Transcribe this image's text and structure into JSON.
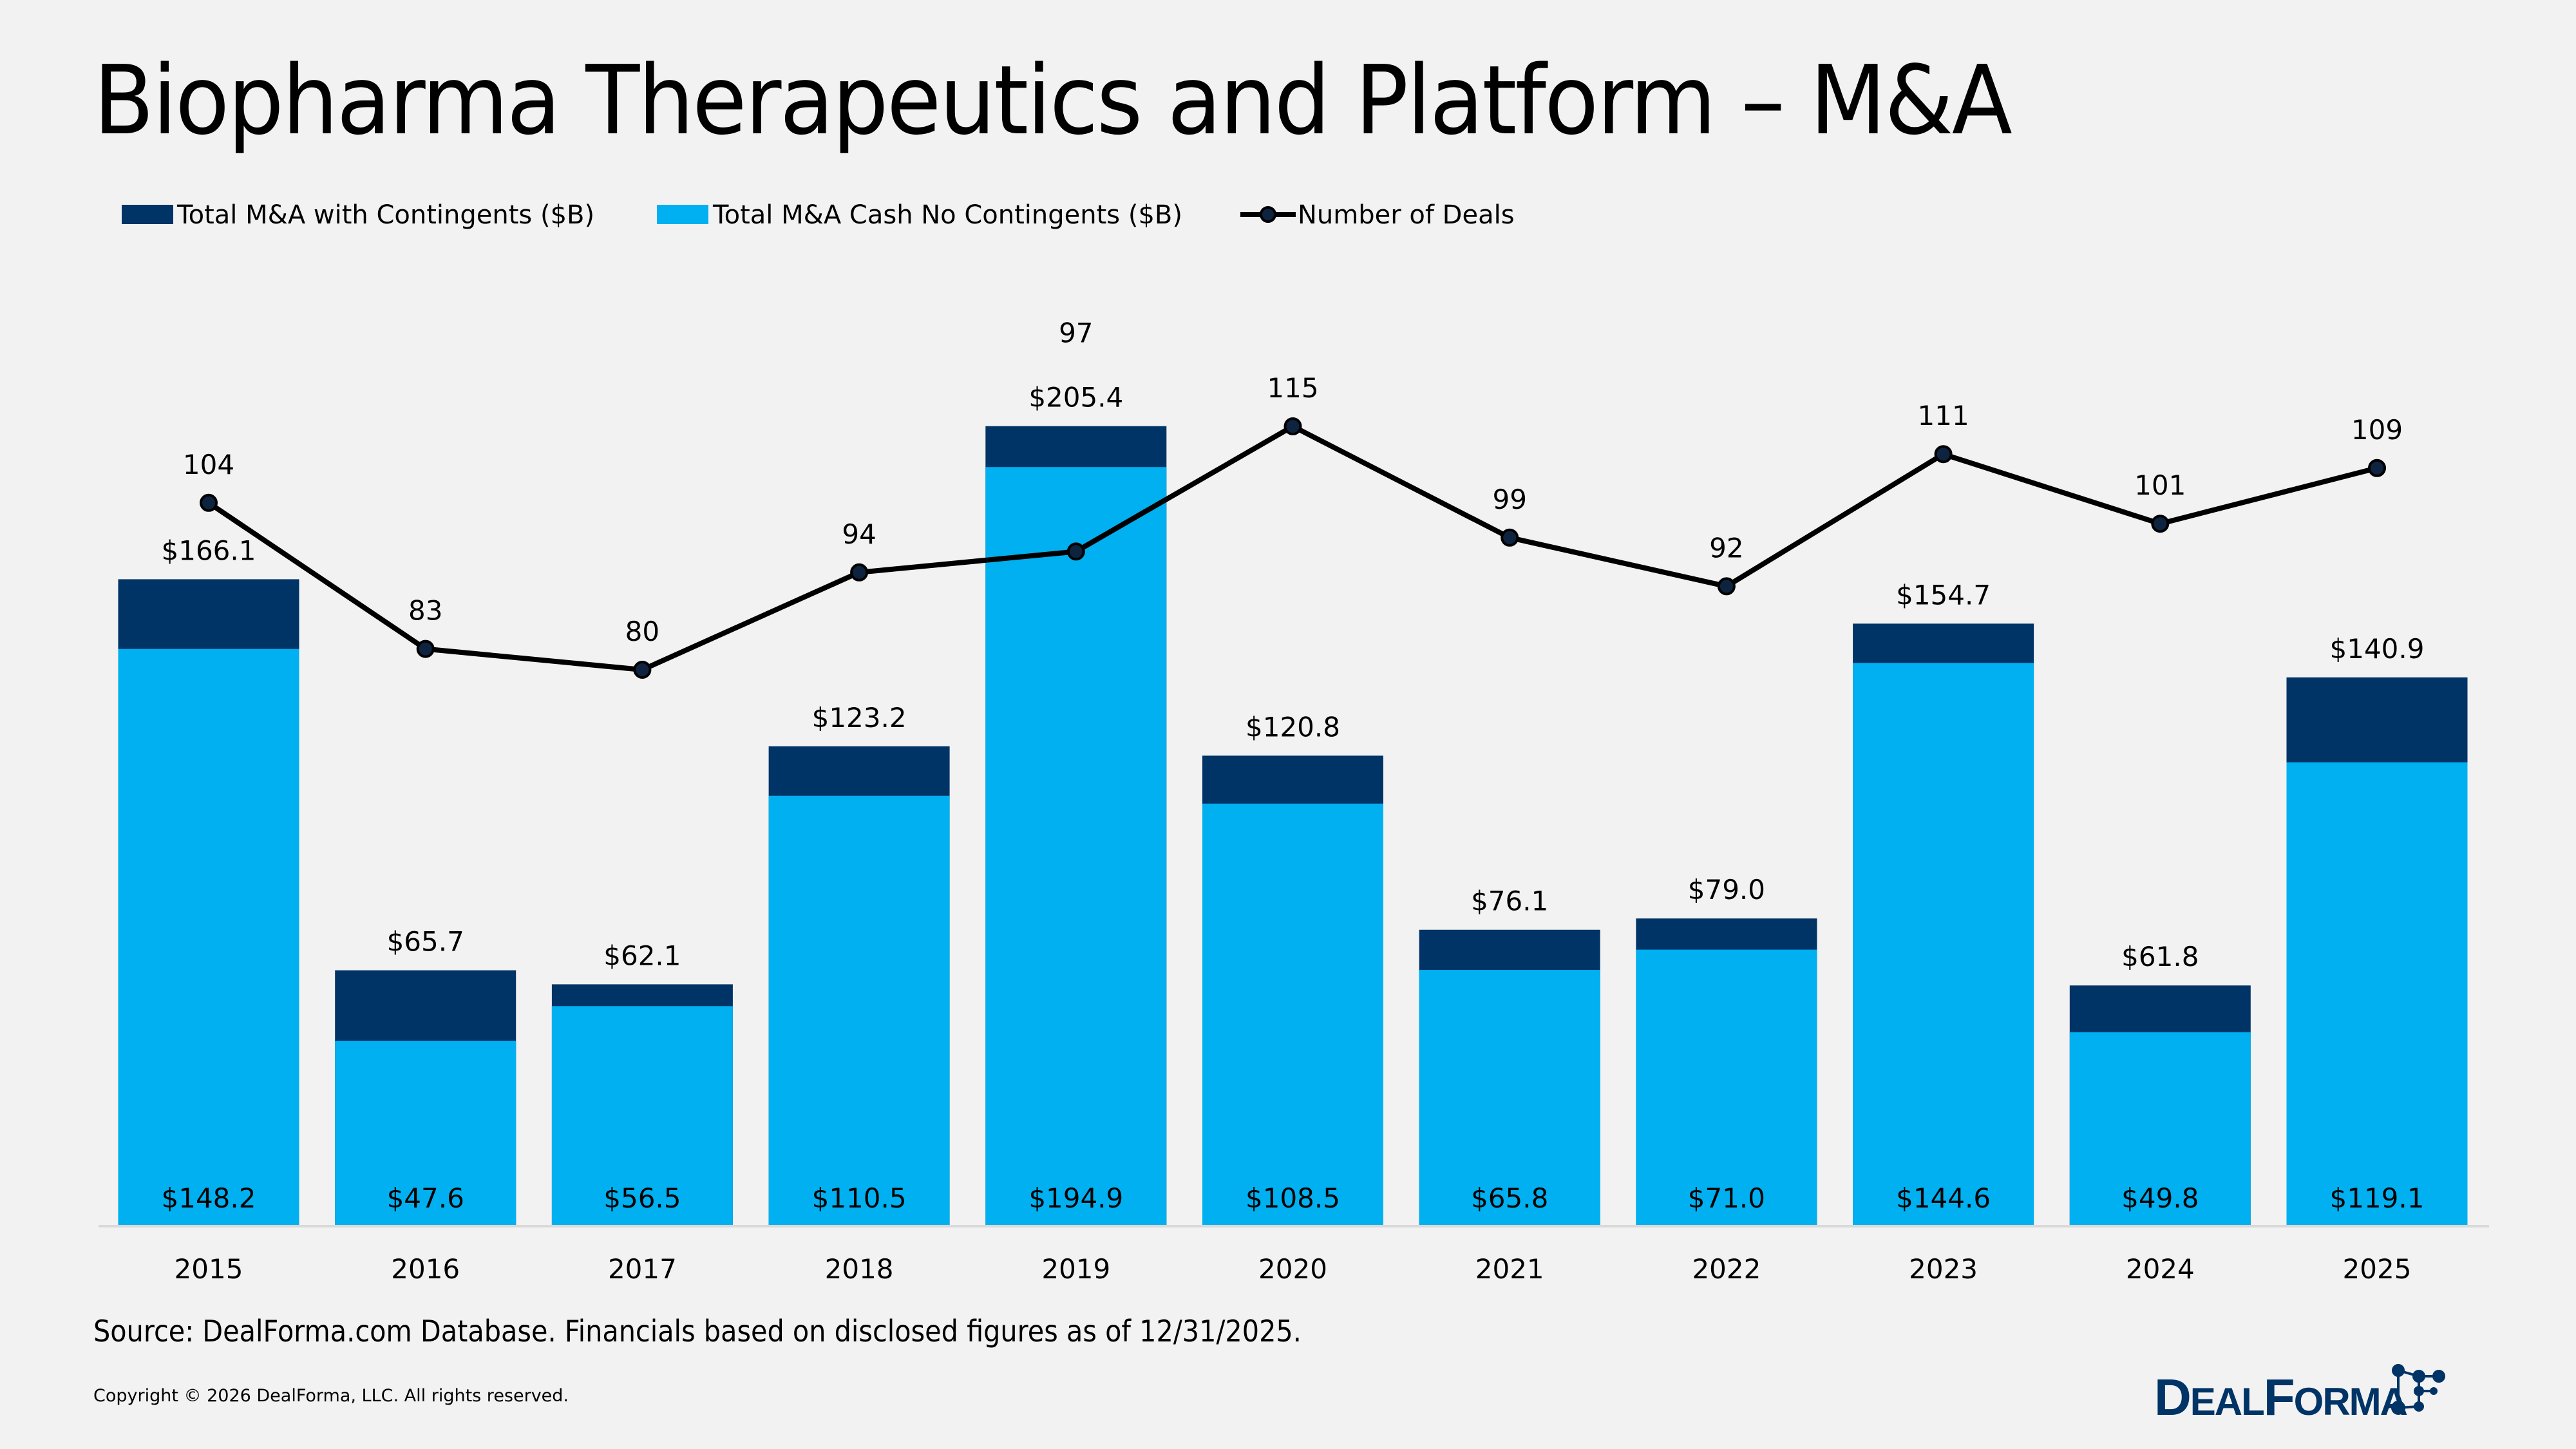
{
  "title": "Biopharma Therapeutics and Platform – M&A",
  "source": "Source: DealForma.com Database. Financials based on disclosed figures as of 12/31/2025.",
  "copyright": "Copyright © 2026 DealForma, LLC. All rights reserved.",
  "logo": {
    "text": "DealForma",
    "color": "#003366"
  },
  "chart_data": {
    "type": "bar",
    "stacked": "overlay",
    "title": "Biopharma Therapeutics and Platform – M&A",
    "categories": [
      "2015",
      "2016",
      "2017",
      "2018",
      "2019",
      "2020",
      "2021",
      "2022",
      "2023",
      "2024",
      "2025"
    ],
    "series": [
      {
        "name": "Total M&A with Contingents ($B)",
        "type": "bar",
        "color": "#003366",
        "values": [
          166.1,
          65.7,
          62.1,
          123.2,
          205.4,
          120.8,
          76.1,
          79.0,
          154.7,
          61.8,
          140.9
        ],
        "labels": [
          "$166.1",
          "$65.7",
          "$62.1",
          "$123.2",
          "$205.4",
          "$120.8",
          "$76.1",
          "$79.0",
          "$154.7",
          "$61.8",
          "$140.9"
        ]
      },
      {
        "name": "Total M&A Cash No Contingents ($B)",
        "type": "bar",
        "color": "#00b0f0",
        "values": [
          148.2,
          47.6,
          56.5,
          110.5,
          194.9,
          108.5,
          65.8,
          71.0,
          144.6,
          49.8,
          119.1
        ],
        "labels": [
          "$148.2",
          "$47.6",
          "$56.5",
          "$110.5",
          "$194.9",
          "$108.5",
          "$65.8",
          "$71.0",
          "$144.6",
          "$49.8",
          "$119.1"
        ]
      },
      {
        "name": "Number of Deals",
        "type": "line",
        "color": "#000000",
        "axis": "secondary",
        "values": [
          104,
          83,
          80,
          94,
          97,
          115,
          99,
          92,
          111,
          101,
          109
        ],
        "labels": [
          "104",
          "83",
          "80",
          "94",
          "97",
          "115",
          "99",
          "92",
          "111",
          "101",
          "109"
        ]
      }
    ],
    "ylim": [
      0,
      250
    ],
    "y2lim": [
      0,
      140
    ],
    "grid": false,
    "axes_visible": false,
    "legend": "top-left"
  }
}
